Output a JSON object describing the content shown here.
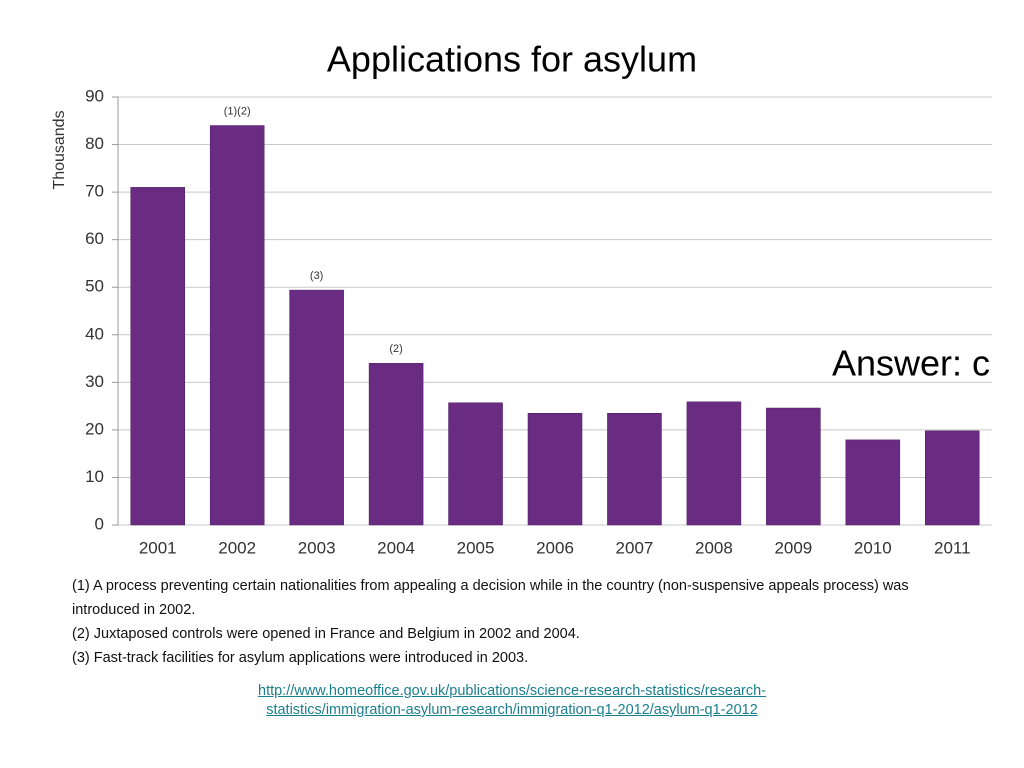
{
  "chart_data": {
    "type": "bar",
    "title": "Applications for asylum",
    "y_label": "Thousands",
    "categories": [
      "2001",
      "2002",
      "2003",
      "2004",
      "2005",
      "2006",
      "2007",
      "2008",
      "2009",
      "2010",
      "2011"
    ],
    "values": [
      71,
      84,
      49.4,
      34,
      25.7,
      23.5,
      23.5,
      25.9,
      24.6,
      17.9,
      19.8
    ],
    "color": "#6a2c82",
    "ylim": [
      0,
      90
    ],
    "yticks": [
      0,
      10,
      20,
      30,
      40,
      50,
      60,
      70,
      80,
      90
    ],
    "grid": true,
    "annotations": [
      {
        "text": "(1)(2)",
        "category": "2002"
      },
      {
        "text": "(3)",
        "category": "2003"
      },
      {
        "text": "(2)",
        "category": "2004"
      }
    ]
  },
  "answer": "Answer: c",
  "footnotes": [
    "(1) A process preventing certain nationalities from appealing a decision while in the country (non-suspensive appeals process) was introduced in 2002.",
    "(2) Juxtaposed controls were opened in France and Belgium in 2002 and 2004.",
    "(3) Fast-track facilities for asylum applications were introduced in 2003."
  ],
  "source_link": "http://www.homeoffice.gov.uk/publications/science-research-statistics/research-statistics/immigration-asylum-research/immigration-q1-2012/asylum-q1-2012"
}
